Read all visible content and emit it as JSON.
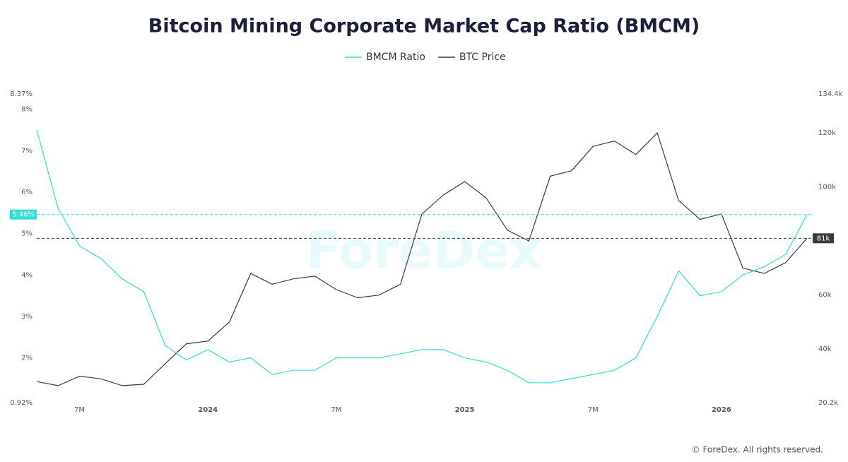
{
  "chart_data": {
    "type": "line",
    "title": "Bitcoin Mining Corporate Market Cap Ratio (BMCM)",
    "watermark": "ForeDex",
    "footer": "© ForeDex. All rights reserved.",
    "x": [
      "2023-05",
      "2023-06",
      "2023-07",
      "2023-08",
      "2023-09",
      "2023-10",
      "2023-11",
      "2023-12",
      "2024-01",
      "2024-02",
      "2024-03",
      "2024-04",
      "2024-05",
      "2024-06",
      "2024-07",
      "2024-08",
      "2024-09",
      "2024-10",
      "2024-11",
      "2024-12",
      "2025-01",
      "2025-02",
      "2025-03",
      "2025-04",
      "2025-05",
      "2025-06",
      "2025-07",
      "2025-08",
      "2025-09",
      "2025-10",
      "2025-11",
      "2025-12",
      "2026-01",
      "2026-02",
      "2026-03",
      "2026-04",
      "2026-05"
    ],
    "xlim": [
      "2023-05",
      "2026-05"
    ],
    "xticks": [
      {
        "value": "2023-07",
        "label": "7M"
      },
      {
        "value": "2024-01",
        "label": "2024"
      },
      {
        "value": "2024-07",
        "label": "7M"
      },
      {
        "value": "2025-01",
        "label": "2025"
      },
      {
        "value": "2025-07",
        "label": "7M"
      },
      {
        "value": "2026-01",
        "label": "2026"
      }
    ],
    "ylim": [
      0.92,
      8.37
    ],
    "yticks": [
      {
        "value": 0.92,
        "label": "0.92%"
      },
      {
        "value": 2,
        "label": "2%"
      },
      {
        "value": 3,
        "label": "3%"
      },
      {
        "value": 4,
        "label": "4%"
      },
      {
        "value": 5,
        "label": "5%"
      },
      {
        "value": 6,
        "label": "6%"
      },
      {
        "value": 7,
        "label": "7%"
      },
      {
        "value": 8,
        "label": "8%"
      },
      {
        "value": 8.37,
        "label": "8.37%"
      }
    ],
    "y2lim": [
      20200,
      134400
    ],
    "y2ticks": [
      {
        "value": 20200,
        "label": "20.2k"
      },
      {
        "value": 40000,
        "label": "40k"
      },
      {
        "value": 60000,
        "label": "60k"
      },
      {
        "value": 100000,
        "label": "100k"
      },
      {
        "value": 120000,
        "label": "120k"
      },
      {
        "value": 134400,
        "label": "134.4k"
      }
    ],
    "series": [
      {
        "name": "BMCM Ratio",
        "color": "#2ee0d6",
        "end_label": "5.46%",
        "values": [
          7.5,
          5.6,
          4.7,
          4.4,
          3.9,
          3.6,
          2.3,
          1.95,
          2.2,
          1.9,
          2.0,
          1.6,
          1.7,
          1.7,
          2.0,
          2.0,
          2.0,
          2.1,
          2.2,
          2.2,
          2.0,
          1.9,
          1.7,
          1.4,
          1.4,
          1.5,
          1.6,
          1.7,
          2.0,
          3.0,
          4.1,
          3.5,
          3.6,
          4.0,
          4.2,
          4.5,
          5.46
        ]
      },
      {
        "name": "BTC Price",
        "color": "#3a3a3a",
        "axis": "y2",
        "end_label": "81k",
        "values": [
          28000,
          26500,
          30000,
          29000,
          26500,
          27000,
          34600,
          42000,
          43000,
          50000,
          68000,
          64000,
          66000,
          67000,
          62000,
          59000,
          60000,
          64000,
          90000,
          97000,
          102000,
          96000,
          84000,
          80000,
          104000,
          106000,
          115000,
          117000,
          112000,
          120000,
          95000,
          88000,
          90000,
          70000,
          68000,
          72000,
          81000
        ]
      }
    ]
  }
}
